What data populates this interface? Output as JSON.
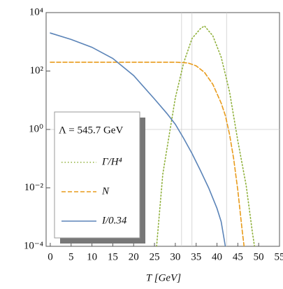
{
  "chart_data": {
    "type": "line",
    "annotation": "Λ = 545.7 GeV",
    "x_label": "T [GeV]",
    "log_y": true,
    "xlim": [
      -1,
      55
    ],
    "ylim": [
      0.0001,
      10000
    ],
    "xticks": [
      0,
      5,
      10,
      15,
      20,
      25,
      30,
      35,
      40,
      45,
      50,
      55
    ],
    "yticks": [
      {
        "value": 0.0001,
        "label": "10⁻⁴"
      },
      {
        "value": 0.01,
        "label": "10⁻²"
      },
      {
        "value": 1,
        "label": "10⁰"
      },
      {
        "value": 100,
        "label": "10²"
      },
      {
        "value": 10000,
        "label": "10⁴"
      }
    ],
    "vlines": [
      31.5,
      34,
      42.3
    ],
    "hlines": [
      1
    ],
    "series": [
      {
        "name": "Γ/H⁴",
        "color": "#8fb03a",
        "style": "dotted",
        "x": [
          25.5,
          27,
          30,
          32,
          34,
          36,
          37,
          39,
          41,
          43,
          45,
          47,
          48.5,
          49
        ],
        "values": [
          0.0001,
          0.03,
          12,
          190,
          1300,
          2800,
          3500,
          1600,
          300,
          20,
          0.4,
          0.012,
          0.0003,
          0.0001
        ]
      },
      {
        "name": "N",
        "color": "#e89b1b",
        "style": "dashed",
        "x": [
          0,
          10,
          20,
          30,
          33,
          35,
          37,
          39,
          41,
          42,
          43,
          44,
          45,
          46,
          46.5
        ],
        "values": [
          200,
          200,
          200,
          200,
          190,
          150,
          90,
          35,
          8,
          3,
          0.7,
          0.1,
          0.008,
          0.0004,
          0.0001
        ]
      },
      {
        "name": "I/0.34",
        "color": "#5b84b8",
        "style": "solid",
        "x": [
          0,
          5,
          10,
          15,
          20,
          25,
          28,
          30,
          32,
          34,
          36,
          38,
          40,
          41,
          42
        ],
        "values": [
          2000,
          1200,
          650,
          270,
          70,
          11,
          3.5,
          1.5,
          0.5,
          0.15,
          0.04,
          0.01,
          0.002,
          0.0007,
          0.0001
        ]
      }
    ]
  }
}
